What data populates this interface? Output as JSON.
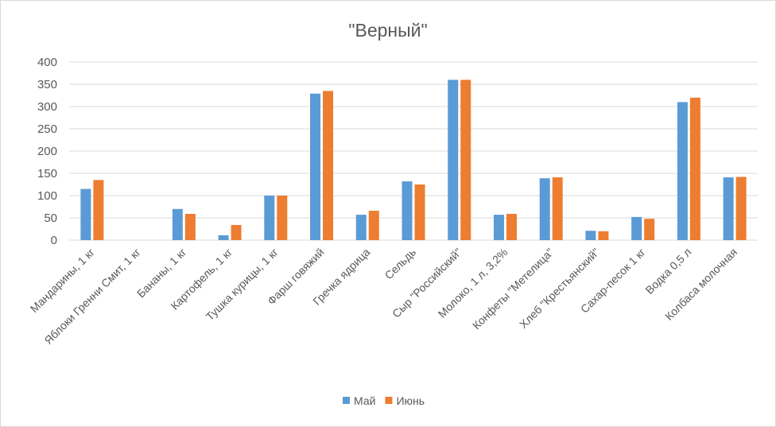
{
  "chart_data": {
    "type": "bar",
    "title": "\"Верный\"",
    "xlabel": "",
    "ylabel": "",
    "ylim": [
      0,
      400
    ],
    "yticks": [
      "0",
      "50",
      "100",
      "150",
      "200",
      "250",
      "300",
      "350",
      "400"
    ],
    "grid": true,
    "legend_position": "bottom",
    "categories": [
      "Мандарины, 1 кг",
      "Яблоки Гренни Смит, 1 кг",
      "Бананы, 1 кг",
      "Картофель, 1 кг",
      "Тушка курицы, 1 кг",
      "Фарш говяжий",
      "Гречка ядрица",
      "Сельдь",
      "Сыр \"Российский\"",
      "Молоко, 1 л, 3,2%",
      "Конфеты \"Метелица\"",
      "Хлеб \"Крестьянский\"",
      "Сахар-песок 1 кг",
      "Водка 0,5 л",
      "Колбаса молочная"
    ],
    "series": [
      {
        "name": "Май",
        "color": "#5b9bd5",
        "values": [
          115,
          0,
          70,
          11,
          100,
          329,
          57,
          132,
          360,
          57,
          139,
          21,
          52,
          310,
          141
        ]
      },
      {
        "name": "Июнь",
        "color": "#ed7d31",
        "values": [
          135,
          0,
          59,
          34,
          100,
          335,
          66,
          125,
          360,
          59,
          141,
          20,
          48,
          320,
          142
        ]
      }
    ]
  }
}
